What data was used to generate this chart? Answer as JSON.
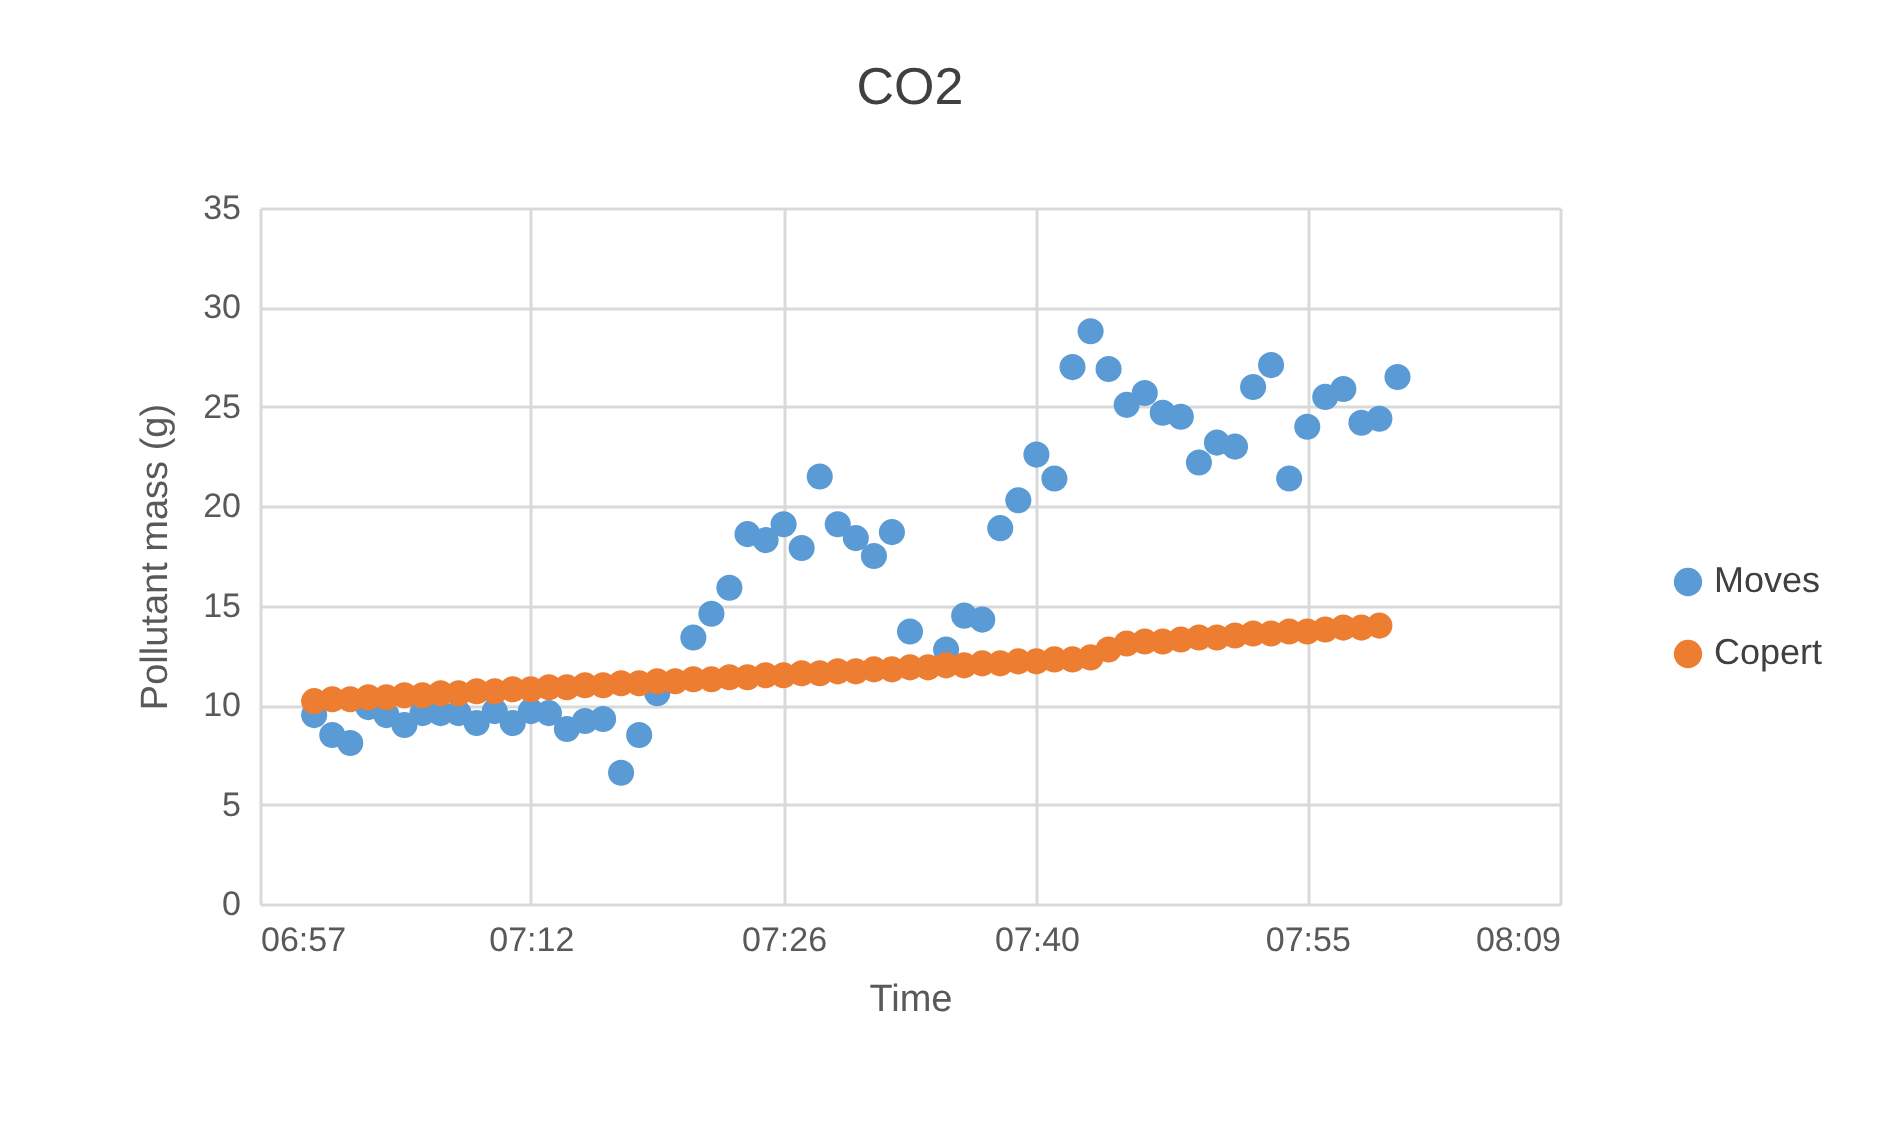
{
  "chart_data": {
    "type": "scatter",
    "title": "CO2",
    "xlabel": "Time",
    "ylabel": "Pollutant mass (g)",
    "x": [
      7,
      7.0167,
      7.0333,
      7.05,
      7.0667,
      7.0833,
      7.1,
      7.1167,
      7.1333,
      7.15,
      7.1667,
      7.1833,
      7.2,
      7.2167,
      7.2333,
      7.25,
      7.2667,
      7.2833,
      7.3,
      7.3167,
      7.3333,
      7.35,
      7.3667,
      7.3833,
      7.4,
      7.4167,
      7.4333,
      7.45,
      7.4667,
      7.4833,
      7.5,
      7.5167,
      7.5333,
      7.55,
      7.5667,
      7.5833,
      7.6,
      7.6167,
      7.6333,
      7.65,
      7.6667,
      7.6833,
      7.7,
      7.7167,
      7.7333,
      7.75,
      7.7667,
      7.7833,
      7.8,
      7.8167,
      7.8333,
      7.85,
      7.8667,
      7.8833,
      7.9,
      7.9167,
      7.9333,
      7.95,
      7.9667,
      7.9833,
      8
    ],
    "series": [
      {
        "name": "Moves",
        "color": "#5b9bd5",
        "values": [
          9.5,
          8.5,
          8.1,
          9.9,
          9.5,
          9.0,
          9.6,
          9.6,
          9.6,
          9.1,
          9.7,
          9.1,
          9.7,
          9.6,
          8.8,
          9.2,
          9.3,
          6.6,
          8.5,
          10.6,
          null,
          13.4,
          14.6,
          15.9,
          18.6,
          18.3,
          19.1,
          17.9,
          21.5,
          19.1,
          18.4,
          17.5,
          18.7,
          13.7,
          null,
          12.8,
          14.5,
          14.3,
          18.9,
          20.3,
          22.6,
          21.4,
          27.0,
          28.8,
          26.9,
          25.1,
          25.7,
          24.7,
          24.5,
          22.2,
          23.2,
          23.0,
          26.0,
          27.1,
          21.4,
          24.0,
          25.5,
          25.9,
          24.2,
          24.4,
          26.5
        ]
      },
      {
        "name": "Copert",
        "color": "#ed7d31",
        "x": [
          7,
          7.0167,
          7.0333,
          7.05,
          7.0667,
          7.0833,
          7.1,
          7.1167,
          7.1333,
          7.15,
          7.1667,
          7.1833,
          7.2,
          7.2167,
          7.2333,
          7.25,
          7.2667,
          7.2833,
          7.3,
          7.3167,
          7.3333,
          7.35,
          7.3667,
          7.3833,
          7.4,
          7.4167,
          7.4333,
          7.45,
          7.4667,
          7.4833,
          7.5,
          7.5167,
          7.5333,
          7.55,
          7.5667,
          7.5833,
          7.6,
          7.6167,
          7.6333,
          7.65,
          7.6667,
          7.6833,
          7.7,
          7.7167,
          7.7333,
          7.75,
          7.7667,
          7.7833,
          7.8,
          7.8167,
          7.8333,
          7.85,
          7.8667,
          7.8833,
          7.9,
          7.9167,
          7.9333,
          7.95,
          7.9667,
          7.9833
        ],
        "values": [
          10.2,
          10.3,
          10.3,
          10.4,
          10.4,
          10.5,
          10.5,
          10.6,
          10.6,
          10.7,
          10.7,
          10.8,
          10.8,
          10.9,
          10.9,
          11.0,
          11.0,
          11.1,
          11.1,
          11.2,
          11.2,
          11.3,
          11.3,
          11.4,
          11.4,
          11.5,
          11.5,
          11.6,
          11.6,
          11.7,
          11.7,
          11.8,
          11.8,
          11.9,
          11.9,
          12.0,
          12.0,
          12.1,
          12.1,
          12.2,
          12.2,
          12.3,
          12.3,
          12.4,
          12.8,
          13.1,
          13.2,
          13.2,
          13.3,
          13.4,
          13.4,
          13.5,
          13.6,
          13.6,
          13.7,
          13.7,
          13.8,
          13.9,
          13.9,
          14.0
        ]
      }
    ],
    "xlim": [
      6.95,
      8.15
    ],
    "xticks": [
      {
        "value": 6.95,
        "label": "06:57"
      },
      {
        "value": 7.2,
        "label": "07:12"
      },
      {
        "value": 7.4333,
        "label": "07:26"
      },
      {
        "value": 7.6667,
        "label": "07:40"
      },
      {
        "value": 7.9167,
        "label": "07:55"
      },
      {
        "value": 8.15,
        "label": "08:09"
      }
    ],
    "ylim": [
      0,
      35
    ],
    "yticks": [
      0,
      5,
      10,
      15,
      20,
      25,
      30,
      35
    ],
    "grid": true,
    "legend": "right",
    "marker": "circle"
  }
}
